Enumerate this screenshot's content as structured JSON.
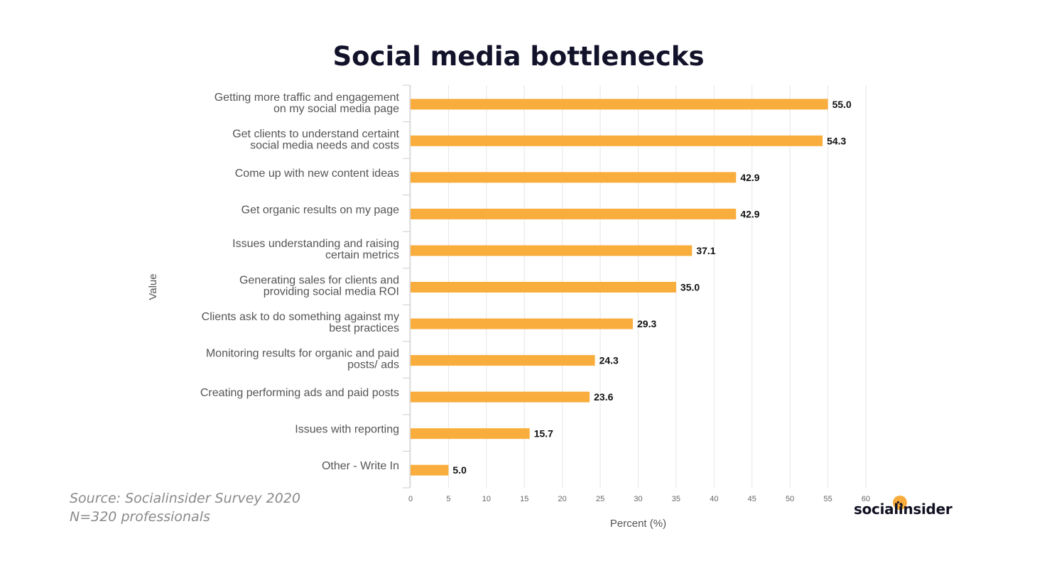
{
  "chart_data": {
    "type": "bar",
    "orientation": "horizontal",
    "title": "Social media bottlenecks",
    "xlabel": "Percent (%)",
    "ylabel": "Value",
    "xlim": [
      0,
      60
    ],
    "x_ticks": [
      0,
      5,
      10,
      15,
      20,
      25,
      30,
      35,
      40,
      45,
      50,
      55,
      60
    ],
    "grid": true,
    "bar_color": "#f9ad3d",
    "categories": [
      [
        "Getting more traffic and engagement",
        "on my social media page"
      ],
      [
        "Get clients to understand certaint",
        "social media needs and costs"
      ],
      [
        "Come up with new content ideas"
      ],
      [
        "Get organic results on my page"
      ],
      [
        "Issues understanding and raising",
        "certain metrics"
      ],
      [
        "Generating sales for clients and",
        "providing social media ROI"
      ],
      [
        "Clients ask to do something against my",
        "best practices"
      ],
      [
        "Monitoring results for organic and paid",
        "posts/ ads"
      ],
      [
        "Creating performing ads and paid posts"
      ],
      [
        "Issues with reporting"
      ],
      [
        "Other - Write In"
      ]
    ],
    "values": [
      55.0,
      54.3,
      42.9,
      42.9,
      37.1,
      35.0,
      29.3,
      24.3,
      23.6,
      15.7,
      5.0
    ],
    "value_labels": [
      "55.0",
      "54.3",
      "42.9",
      "42.9",
      "37.1",
      "35.0",
      "29.3",
      "24.3",
      "23.6",
      "15.7",
      "5.0"
    ]
  },
  "source": {
    "line1": "Source: Socialinsider Survey 2020",
    "line2": "N=320 professionals"
  },
  "logo": {
    "text": "socialinsider",
    "accent_color": "#f7ac3b"
  }
}
